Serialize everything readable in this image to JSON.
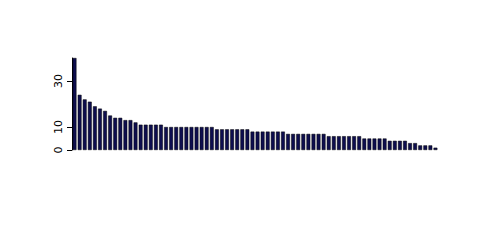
{
  "chart_data": {
    "type": "bar",
    "categories": [
      null,
      null,
      null,
      null,
      null,
      null,
      null,
      null,
      null,
      null,
      null,
      null,
      null,
      null,
      null,
      null,
      null,
      null,
      null,
      null,
      null,
      null,
      null,
      null,
      null,
      null,
      null,
      null,
      null,
      null,
      null,
      null,
      null,
      null,
      null,
      null,
      null,
      null,
      null,
      null,
      null,
      null,
      null,
      null,
      null,
      null,
      null,
      null,
      null,
      null,
      null,
      null,
      null,
      null,
      null,
      null,
      null,
      null,
      null,
      null,
      null,
      null,
      null,
      null,
      null,
      null,
      null,
      null,
      null,
      null,
      null,
      null
    ],
    "values": [
      40,
      24,
      22,
      21,
      19,
      18,
      17,
      15,
      14,
      14,
      13,
      13,
      12,
      11,
      11,
      11,
      11,
      11,
      10,
      10,
      10,
      10,
      10,
      10,
      10,
      10,
      10,
      10,
      9,
      9,
      9,
      9,
      9,
      9,
      9,
      8,
      8,
      8,
      8,
      8,
      8,
      8,
      7,
      7,
      7,
      7,
      7,
      7,
      7,
      7,
      6,
      6,
      6,
      6,
      6,
      6,
      6,
      5,
      5,
      5,
      5,
      5,
      4,
      4,
      4,
      4,
      3,
      3,
      2,
      2,
      2,
      1
    ],
    "color": "#0d0d4f",
    "ylim": [
      0,
      40
    ],
    "yticks": [
      0,
      10,
      30
    ],
    "grid": false,
    "tick_labels": "y"
  }
}
